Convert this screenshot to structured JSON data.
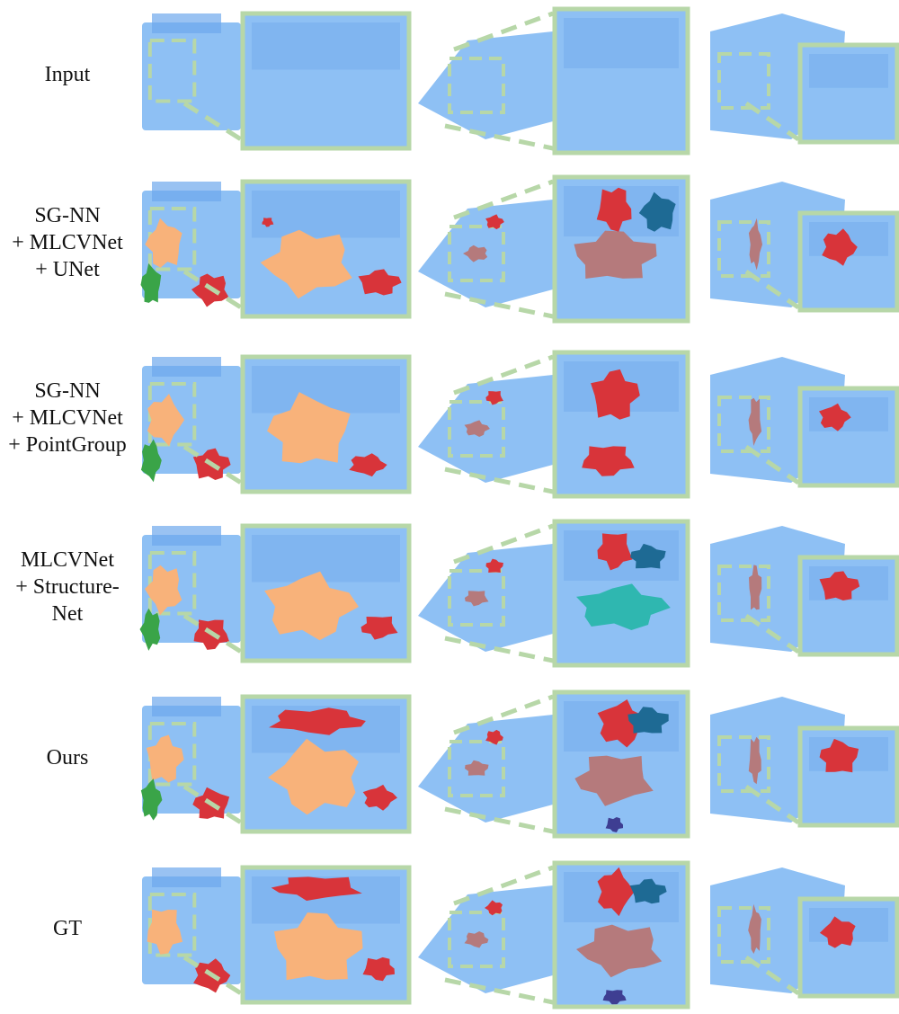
{
  "figure": {
    "rows": [
      {
        "id": "input",
        "label_lines": [
          "Input"
        ]
      },
      {
        "id": "sgnn-unet",
        "label_lines": [
          "SG-NN",
          "+ MLCVNet",
          "+ UNet"
        ]
      },
      {
        "id": "sgnn-pointgroup",
        "label_lines": [
          "SG-NN",
          "+ MLCVNet",
          "+ PointGroup"
        ]
      },
      {
        "id": "structurenet",
        "label_lines": [
          "MLCVNet",
          "+ Structure-",
          "Net"
        ]
      },
      {
        "id": "ours",
        "label_lines": [
          "Ours"
        ]
      },
      {
        "id": "gt",
        "label_lines": [
          "GT"
        ]
      }
    ],
    "colors": {
      "scene_blue": "#8ec0f4",
      "scene_blue_dark": "#6ea8ec",
      "zoom_frame_green": "#b7d7a8",
      "bed_orange": "#f8b27a",
      "chair_red": "#d8343a",
      "table_mauve": "#b57a7c",
      "sofa_teal": "#1e6a94",
      "plant_green": "#3aa448",
      "noise_teal": "#2fb7b0",
      "base_purple": "#3e3e92"
    }
  }
}
